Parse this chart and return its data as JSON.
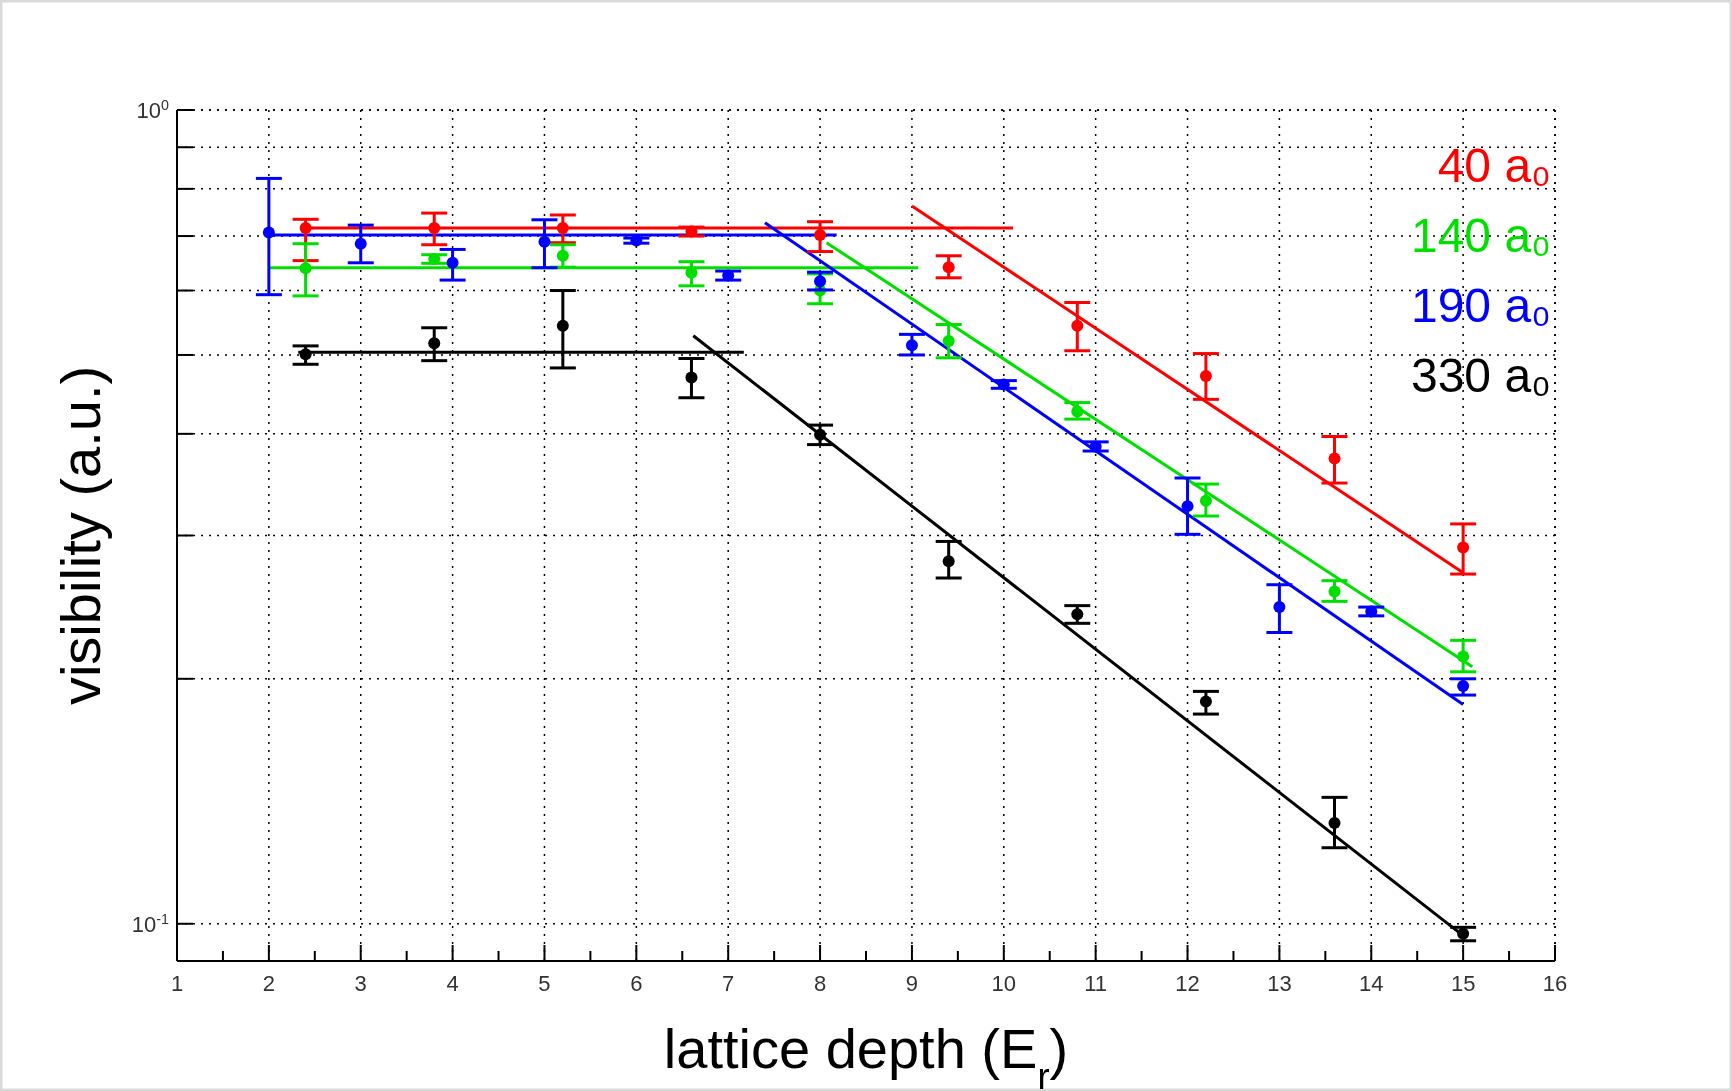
{
  "chart_data": {
    "type": "scatter",
    "xlabel": "lattice depth (E$_{r}$)",
    "ylabel": "visibility (a.u.)",
    "log": "y",
    "grid": true,
    "legend": "top right",
    "marker": "circle",
    "xlim": [
      1,
      16
    ],
    "ylim": [
      0.09,
      1
    ],
    "xticks": [
      1,
      {
        "value": 1.5,
        "label": null
      },
      2,
      {
        "value": 2.5,
        "label": null
      },
      3,
      {
        "value": 3.5,
        "label": null
      },
      4,
      {
        "value": 4.5,
        "label": null
      },
      5,
      {
        "value": 5.5,
        "label": null
      },
      6,
      {
        "value": 6.5,
        "label": null
      },
      7,
      {
        "value": 7.5,
        "label": null
      },
      8,
      {
        "value": 8.5,
        "label": null
      },
      9,
      {
        "value": 9.5,
        "label": null
      },
      10,
      {
        "value": 10.5,
        "label": null
      },
      11,
      {
        "value": 11.5,
        "label": null
      },
      12,
      {
        "value": 12.5,
        "label": null
      },
      13,
      {
        "value": 13.5,
        "label": null
      },
      14,
      {
        "value": 14.5,
        "label": null
      },
      15,
      {
        "value": 15.5,
        "label": null
      },
      16
    ],
    "yticks": [
      {
        "value": 0.1,
        "label": "10$^{-1}$"
      },
      {
        "value": 0.2,
        "label": null
      },
      {
        "value": 0.3,
        "label": null
      },
      {
        "value": 0.4,
        "label": null
      },
      {
        "value": 0.5,
        "label": null
      },
      {
        "value": 0.6,
        "label": null
      },
      {
        "value": 0.7,
        "label": null
      },
      {
        "value": 0.8,
        "label": null
      },
      {
        "value": 0.9,
        "label": null
      },
      {
        "value": 1,
        "label": "10$^{0}$"
      }
    ],
    "series": [
      {
        "name": "40 a₀",
        "color": "#ff0000",
        "x": [
          2.4,
          3.8,
          5.2,
          6.6,
          8.0,
          9.4,
          10.8,
          12.2,
          13.6,
          15.0
        ],
        "values": [
          0.716,
          0.716,
          0.716,
          0.709,
          0.702,
          0.641,
          0.543,
          0.471,
          0.373,
          0.29
        ],
        "errors": [
          [
            0.653,
            0.734
          ],
          [
            0.683,
            0.747
          ],
          [
            0.687,
            0.743
          ],
          [
            0.7,
            0.718
          ],
          [
            0.67,
            0.729
          ],
          [
            0.622,
            0.662
          ],
          [
            0.506,
            0.58
          ],
          [
            0.441,
            0.502
          ],
          [
            0.348,
            0.397
          ],
          [
            0.269,
            0.31
          ]
        ]
      },
      {
        "name": "140 a₀",
        "color": "#00e000",
        "x": [
          2.4,
          3.8,
          5.2,
          6.6,
          8.0,
          9.4,
          10.8,
          12.2,
          13.6,
          15.0
        ],
        "values": [
          0.639,
          0.656,
          0.662,
          0.631,
          0.6,
          0.52,
          0.426,
          0.331,
          0.256,
          0.213
        ],
        "errors": [
          [
            0.591,
            0.685
          ],
          [
            0.648,
            0.664
          ],
          [
            0.641,
            0.683
          ],
          [
            0.608,
            0.651
          ],
          [
            0.578,
            0.629
          ],
          [
            0.496,
            0.545
          ],
          [
            0.417,
            0.437
          ],
          [
            0.317,
            0.347
          ],
          [
            0.249,
            0.264
          ],
          [
            0.204,
            0.223
          ]
        ]
      },
      {
        "name": "190 a₀",
        "color": "#0000ff",
        "x": [
          2,
          3,
          4,
          5,
          6,
          7,
          8,
          9,
          10,
          11,
          12,
          13,
          14,
          15
        ],
        "values": [
          0.707,
          0.685,
          0.649,
          0.689,
          0.691,
          0.626,
          0.616,
          0.514,
          0.46,
          0.386,
          0.326,
          0.245,
          0.242,
          0.196
        ],
        "errors": [
          [
            0.593,
            0.824
          ],
          [
            0.649,
            0.722
          ],
          [
            0.618,
            0.674
          ],
          [
            0.64,
            0.733
          ],
          [
            0.686,
            0.696
          ],
          [
            0.618,
            0.634
          ],
          [
            0.601,
            0.632
          ],
          [
            0.5,
            0.53
          ],
          [
            0.455,
            0.465
          ],
          [
            0.381,
            0.391
          ],
          [
            0.301,
            0.353
          ],
          [
            0.228,
            0.261
          ],
          [
            0.239,
            0.245
          ],
          [
            0.191,
            0.2
          ]
        ]
      },
      {
        "name": "330 a₀",
        "color": "#000000",
        "x": [
          2.4,
          3.8,
          5.2,
          6.6,
          8.0,
          9.4,
          10.8,
          12.2,
          13.6,
          15.0
        ],
        "values": [
          0.501,
          0.517,
          0.543,
          0.469,
          0.399,
          0.279,
          0.24,
          0.1875,
          0.133,
          0.0972
        ],
        "errors": [
          [
            0.487,
            0.513
          ],
          [
            0.492,
            0.54
          ],
          [
            0.482,
            0.6
          ],
          [
            0.443,
            0.495
          ],
          [
            0.388,
            0.41
          ],
          [
            0.266,
            0.295
          ],
          [
            0.234,
            0.246
          ],
          [
            0.181,
            0.193
          ],
          [
            0.124,
            0.143
          ],
          [
            0.0953,
            0.099
          ]
        ]
      },
      {
        "type": "line",
        "marker": "none",
        "color": "#ff0000",
        "x": [
          2.4,
          10.1
        ],
        "values": [
          0.716,
          0.716
        ]
      },
      {
        "type": "line",
        "marker": "none",
        "color": "#ff0000",
        "x": [
          9.0,
          15.0
        ],
        "values": [
          0.762,
          0.27
        ]
      },
      {
        "type": "line",
        "marker": "none",
        "color": "#00e000",
        "x": [
          2.0,
          9.07
        ],
        "values": [
          0.64,
          0.64
        ]
      },
      {
        "type": "line",
        "marker": "none",
        "color": "#00e000",
        "x": [
          8.07,
          15.1
        ],
        "values": [
          0.687,
          0.207
        ]
      },
      {
        "type": "line",
        "marker": "none",
        "color": "#0000ff",
        "x": [
          2.0,
          8.18
        ],
        "values": [
          0.702,
          0.702
        ]
      },
      {
        "type": "line",
        "marker": "none",
        "color": "#0000ff",
        "x": [
          7.4,
          15.0
        ],
        "values": [
          0.727,
          0.186
        ]
      },
      {
        "type": "line",
        "marker": "none",
        "color": "#000000",
        "x": [
          2.32,
          7.17
        ],
        "values": [
          0.504,
          0.504
        ]
      },
      {
        "type": "line",
        "marker": "none",
        "color": "#000000",
        "x": [
          6.62,
          15.0
        ],
        "values": [
          0.528,
          0.0967
        ]
      }
    ]
  }
}
